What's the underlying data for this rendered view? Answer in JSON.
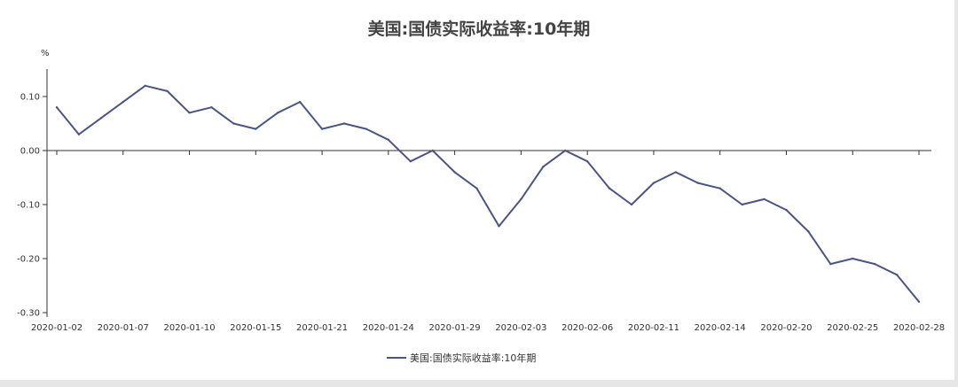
{
  "chart_data": {
    "type": "line",
    "title": "美国:国债实际收益率:10年期",
    "ylabel": "%",
    "xlabel": "",
    "ylim": [
      -0.3,
      0.15
    ],
    "yticks": [
      "0.10",
      "0.00",
      "-0.10",
      "-0.20",
      "-0.30"
    ],
    "ytick_values": [
      0.1,
      0.0,
      -0.1,
      -0.2,
      -0.3
    ],
    "x_tick_labels": [
      "2020-01-02",
      "2020-01-07",
      "2020-01-10",
      "2020-01-15",
      "2020-01-21",
      "2020-01-24",
      "2020-01-29",
      "2020-02-03",
      "2020-02-06",
      "2020-02-11",
      "2020-02-14",
      "2020-02-20",
      "2020-02-25",
      "2020-02-28"
    ],
    "x_tick_index": [
      0,
      3,
      6,
      9,
      12,
      15,
      18,
      21,
      24,
      27,
      30,
      33,
      36,
      39
    ],
    "grid": false,
    "legend_position": "bottom-center",
    "series": [
      {
        "name": "美国:国债实际收益率:10年期",
        "color": "#4a5584",
        "values": [
          0.08,
          0.03,
          0.06,
          0.09,
          0.12,
          0.11,
          0.07,
          0.08,
          0.05,
          0.04,
          0.07,
          0.09,
          0.04,
          0.05,
          0.04,
          0.02,
          -0.02,
          0.0,
          -0.04,
          -0.07,
          -0.14,
          -0.09,
          -0.03,
          0.0,
          -0.02,
          -0.07,
          -0.1,
          -0.06,
          -0.04,
          -0.06,
          -0.07,
          -0.1,
          -0.09,
          -0.11,
          -0.15,
          -0.21,
          -0.2,
          -0.21,
          -0.23,
          -0.28
        ]
      }
    ]
  }
}
